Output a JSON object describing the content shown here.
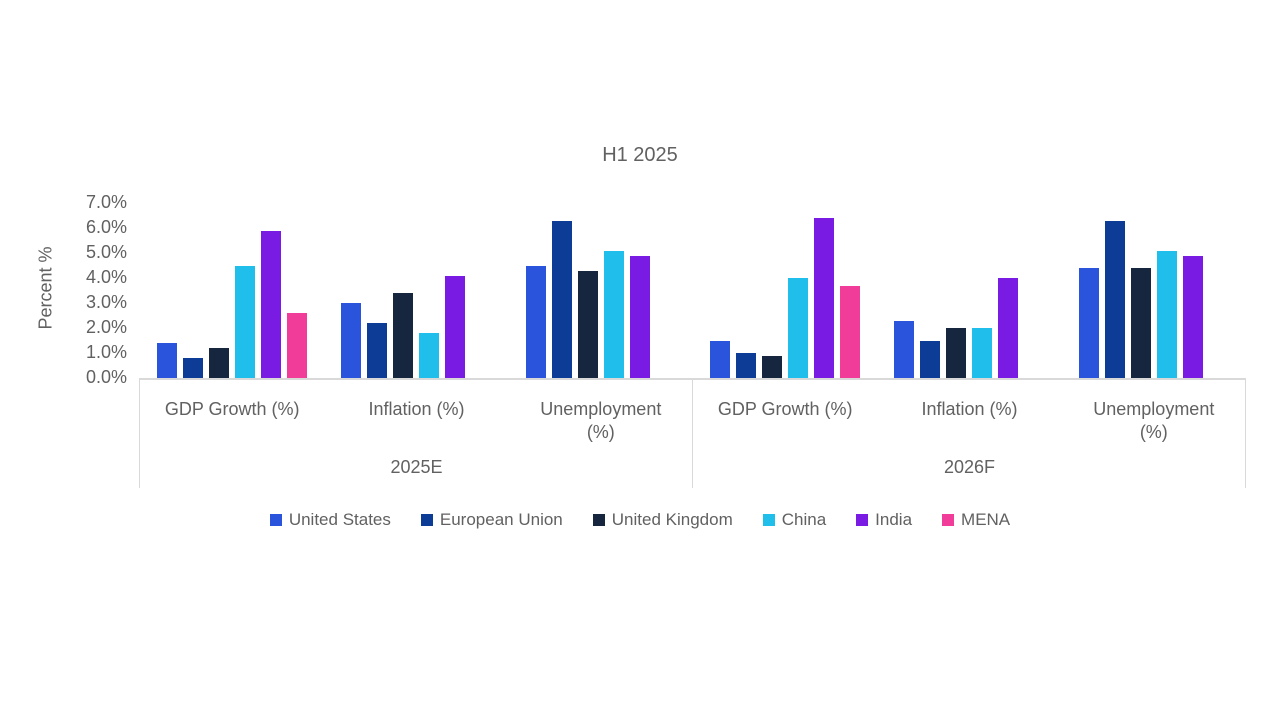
{
  "title": "H1 2025",
  "y_axis": {
    "label": "Percent %",
    "tick_labels_top_to_bottom": [
      "7.0%",
      "6.0%",
      "5.0%",
      "4.0%",
      "3.0%",
      "2.0%",
      "1.0%",
      "0.0%"
    ]
  },
  "colors": {
    "text_gray": "#616161",
    "axis_line": "#D9D9D9",
    "background": "#FFFFFF",
    "united_states": "#2B54DC",
    "european_union": "#0C3C96",
    "united_kingdom": "#16263F",
    "china": "#1FBEEB",
    "india": "#7A1BE4",
    "mena": "#F23C99"
  },
  "chart_data": {
    "type": "bar",
    "title": "H1 2025",
    "xlabel": "",
    "ylabel": "Percent %",
    "ylim": [
      0,
      7
    ],
    "ytick_step": 1,
    "grid": false,
    "legend_position": "bottom",
    "column_order_note": "values arrays are ordered: 2025E GDP Growth, 2025E Inflation, 2025E Unemployment, 2026F GDP Growth, 2026F Inflation, 2026F Unemployment; null = no bar shown",
    "groups": [
      {
        "label": "2025E",
        "categories": [
          "GDP Growth (%)",
          "Inflation (%)",
          "Unemployment (%)"
        ]
      },
      {
        "label": "2026F",
        "categories": [
          "GDP Growth (%)",
          "Inflation (%)",
          "Unemployment (%)"
        ]
      }
    ],
    "series": [
      {
        "name": "United States",
        "color": "#2B54DC",
        "values": [
          1.4,
          3.0,
          4.5,
          1.5,
          2.3,
          4.4
        ]
      },
      {
        "name": "European Union",
        "color": "#0C3C96",
        "values": [
          0.8,
          2.2,
          6.3,
          1.0,
          1.5,
          6.3
        ]
      },
      {
        "name": "United Kingdom",
        "color": "#16263F",
        "values": [
          1.2,
          3.4,
          4.3,
          0.9,
          2.0,
          4.4
        ]
      },
      {
        "name": "China",
        "color": "#1FBEEB",
        "values": [
          4.5,
          1.8,
          5.1,
          4.0,
          2.0,
          5.1
        ]
      },
      {
        "name": "India",
        "color": "#7A1BE4",
        "values": [
          5.9,
          4.1,
          4.9,
          6.4,
          4.0,
          4.9
        ]
      },
      {
        "name": "MENA",
        "color": "#F23C99",
        "values": [
          2.6,
          null,
          null,
          3.7,
          null,
          null
        ]
      }
    ]
  }
}
